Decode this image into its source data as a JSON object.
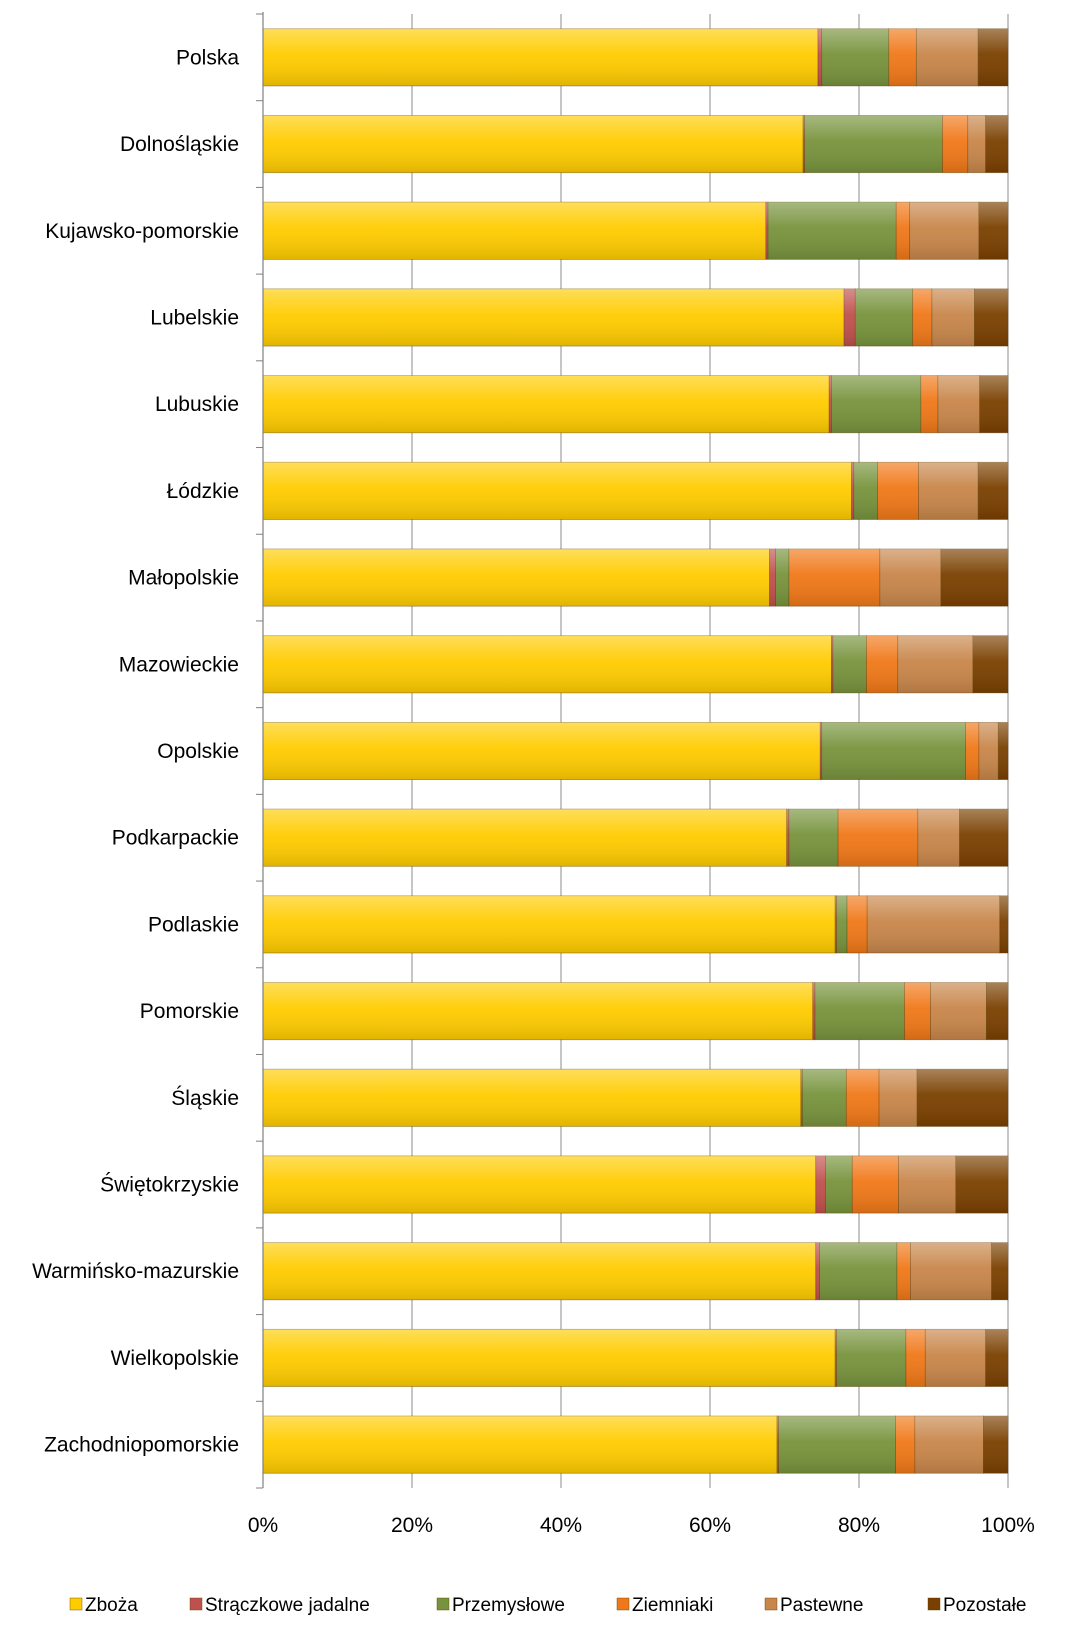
{
  "chart_data": {
    "type": "bar",
    "orientation": "horizontal",
    "stacked": "percent",
    "title": "",
    "xlabel": "",
    "ylabel": "",
    "xlim": [
      0,
      100
    ],
    "x_ticks": [
      "0%",
      "20%",
      "40%",
      "60%",
      "80%",
      "100%"
    ],
    "grid": "vertical",
    "legend_position": "bottom",
    "categories": [
      "Polska",
      "Dolnośląskie",
      "Kujawsko-pomorskie",
      "Lubelskie",
      "Lubuskie",
      "Łódzkie",
      "Małopolskie",
      "Mazowieckie",
      "Opolskie",
      "Podkarpackie",
      "Podlaskie",
      "Pomorskie",
      "Śląskie",
      "Świętokrzyskie",
      "Warmińsko-mazurskie",
      "Wielkopolskie",
      "Zachodniopomorskie"
    ],
    "series": [
      {
        "name": "Zboża",
        "color": "#FFCC00",
        "values": [
          74.5,
          72.5,
          67.5,
          78.0,
          76.0,
          79.0,
          68.0,
          76.3,
          74.8,
          70.3,
          76.8,
          73.8,
          72.2,
          74.2,
          74.2,
          76.8,
          69.0
        ]
      },
      {
        "name": "Strączkowe jadalne",
        "color": "#C0504D",
        "values": [
          0.5,
          0.2,
          0.3,
          1.5,
          0.3,
          0.3,
          0.8,
          0.2,
          0.2,
          0.3,
          0.2,
          0.3,
          0.2,
          1.3,
          0.5,
          0.2,
          0.2
        ]
      },
      {
        "name": "Przemysłowe",
        "color": "#77933C",
        "values": [
          9.0,
          18.5,
          17.2,
          7.7,
          12.0,
          3.2,
          1.8,
          4.5,
          19.3,
          6.6,
          1.4,
          12.0,
          5.9,
          3.6,
          10.4,
          9.3,
          15.7
        ]
      },
      {
        "name": "Ziemniaki",
        "color": "#F07818",
        "values": [
          3.7,
          3.4,
          1.8,
          2.6,
          2.3,
          5.5,
          12.2,
          4.2,
          1.8,
          10.7,
          2.7,
          3.5,
          4.4,
          6.2,
          1.8,
          2.6,
          2.6
        ]
      },
      {
        "name": "Pastewne",
        "color": "#C8864A",
        "values": [
          8.3,
          2.4,
          9.3,
          5.7,
          5.6,
          8.0,
          8.2,
          10.1,
          2.6,
          5.6,
          17.8,
          7.5,
          5.1,
          7.7,
          10.9,
          8.1,
          9.2
        ]
      },
      {
        "name": "Pozostałe",
        "color": "#7A4000",
        "values": [
          4.0,
          3.0,
          3.9,
          4.5,
          3.8,
          4.0,
          9.0,
          4.7,
          1.3,
          6.5,
          1.1,
          2.9,
          12.2,
          7.0,
          2.2,
          3.0,
          3.3
        ]
      }
    ]
  }
}
